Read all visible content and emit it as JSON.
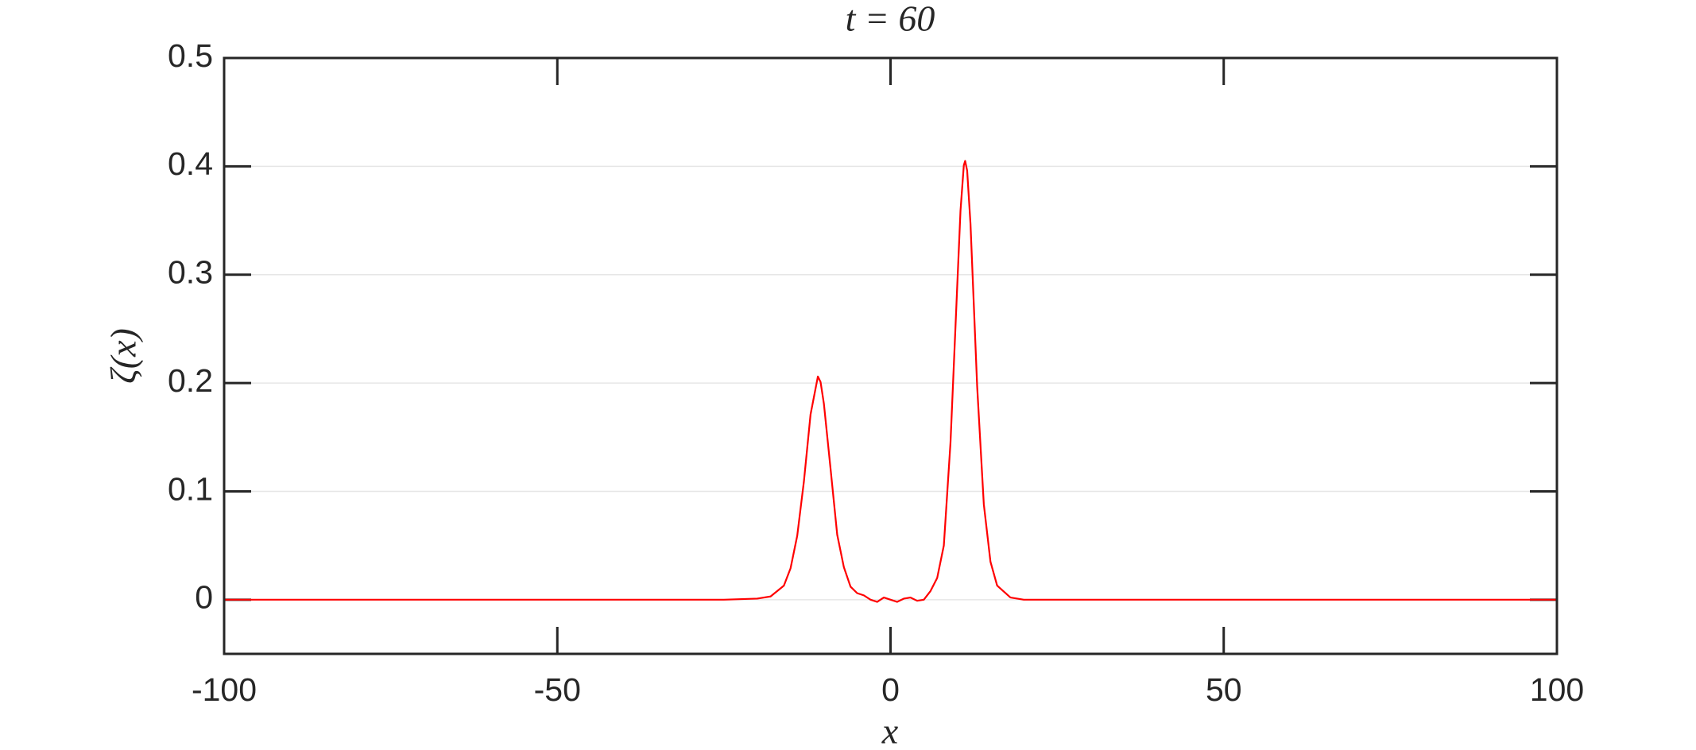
{
  "chart_data": {
    "type": "line",
    "title": "t = 60",
    "xlabel": "x",
    "ylabel": "ζ(x)",
    "xlim": [
      -100,
      100
    ],
    "xticks": [
      -100,
      -50,
      0,
      50,
      100
    ],
    "ylim": [
      -0.05,
      0.5
    ],
    "yticks": [
      0,
      0.1,
      0.2,
      0.3,
      0.4,
      0.5
    ],
    "grid": true,
    "series": [
      {
        "color": "#ff0000",
        "x": [
          -100,
          -80,
          -60,
          -40,
          -25,
          -20,
          -18,
          -16,
          -15,
          -14,
          -13,
          -12,
          -10.9,
          -10.5,
          -10,
          -9,
          -8,
          -7,
          -6,
          -5,
          -4,
          -3,
          -2,
          -1,
          0,
          1,
          2,
          3,
          4,
          5,
          6,
          7,
          8,
          9,
          10,
          10.5,
          11,
          11.2,
          11.5,
          12,
          13,
          14,
          15,
          16,
          18,
          20,
          25,
          40,
          60,
          80,
          100
        ],
        "values": [
          0,
          0,
          0,
          0,
          0,
          0.001,
          0.003,
          0.013,
          0.029,
          0.059,
          0.109,
          0.171,
          0.206,
          0.201,
          0.181,
          0.121,
          0.06,
          0.03,
          0.012,
          0.006,
          0.004,
          0,
          -0.002,
          0.002,
          0,
          -0.002,
          0.001,
          0.002,
          -0.001,
          0,
          0.008,
          0.02,
          0.05,
          0.145,
          0.288,
          0.359,
          0.401,
          0.405,
          0.396,
          0.347,
          0.197,
          0.088,
          0.035,
          0.013,
          0.002,
          0,
          0,
          0,
          0,
          0,
          0
        ]
      }
    ]
  }
}
